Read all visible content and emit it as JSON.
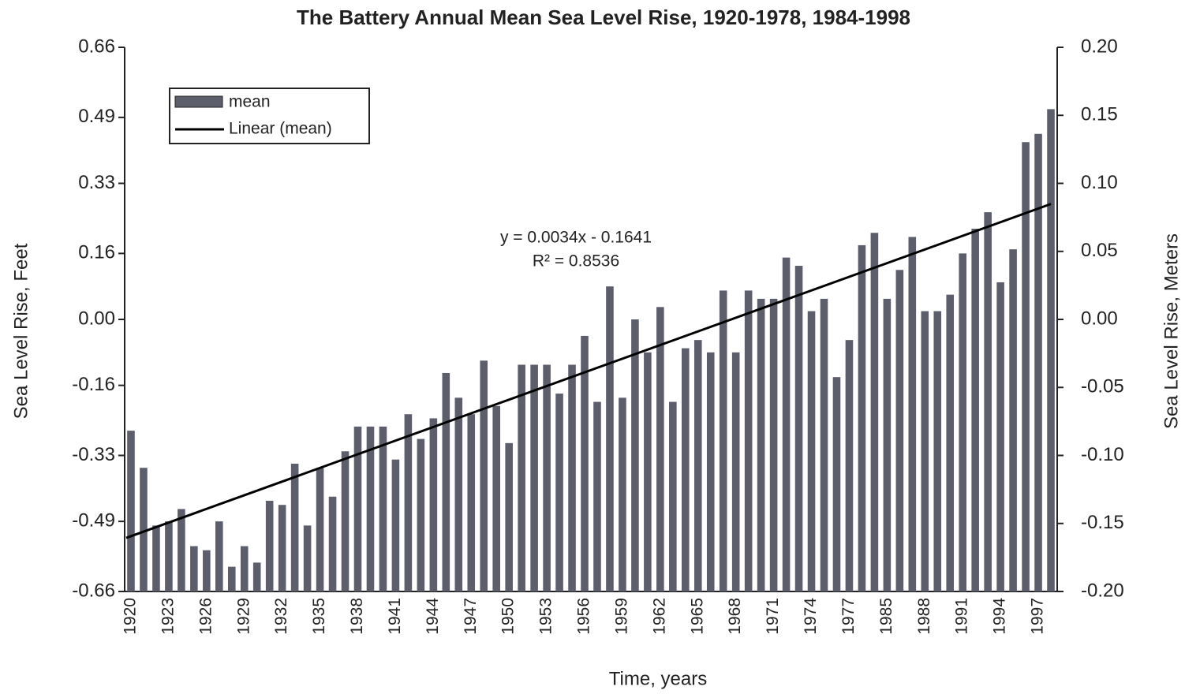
{
  "chart_data": {
    "type": "bar",
    "title": "The Battery Annual Mean Sea Level Rise, 1920-1978, 1984-1998",
    "x_label": "Time, years",
    "y_label": "Sea Level Rise, Feet",
    "y2_label": "Sea Level Rise, Meters",
    "annotations": [
      "y = 0.0034x - 0.1641",
      "R² = 0.8536"
    ],
    "categories": [
      "1920",
      null,
      null,
      "1923",
      null,
      null,
      "1926",
      null,
      null,
      "1929",
      null,
      null,
      "1932",
      null,
      null,
      "1935",
      null,
      null,
      "1938",
      null,
      null,
      "1941",
      null,
      null,
      "1944",
      null,
      null,
      "1947",
      null,
      null,
      "1950",
      null,
      null,
      "1953",
      null,
      null,
      "1956",
      null,
      null,
      "1959",
      null,
      null,
      "1962",
      null,
      null,
      "1965",
      null,
      null,
      "1968",
      null,
      null,
      "1971",
      null,
      null,
      "1974",
      null,
      null,
      "1977",
      null,
      null,
      "1985",
      null,
      null,
      "1988",
      null,
      null,
      "1991",
      null,
      null,
      "1994",
      null,
      null,
      "1997",
      null
    ],
    "series": [
      {
        "name": "mean",
        "color": "#5c5e6b",
        "values": [
          -0.27,
          -0.36,
          -0.5,
          -0.49,
          -0.46,
          -0.55,
          -0.56,
          -0.49,
          -0.6,
          -0.55,
          -0.59,
          -0.44,
          -0.45,
          -0.35,
          -0.5,
          -0.36,
          -0.43,
          -0.32,
          -0.26,
          -0.26,
          -0.26,
          -0.34,
          -0.23,
          -0.29,
          -0.24,
          -0.13,
          -0.19,
          -0.23,
          -0.1,
          -0.21,
          -0.3,
          -0.11,
          -0.11,
          -0.11,
          -0.18,
          -0.11,
          -0.04,
          -0.2,
          0.08,
          -0.19,
          0.0,
          -0.08,
          0.03,
          -0.2,
          -0.07,
          -0.05,
          -0.08,
          0.07,
          -0.08,
          0.07,
          0.05,
          0.05,
          0.15,
          0.13,
          0.02,
          0.05,
          -0.14,
          -0.05,
          0.18,
          0.21,
          0.05,
          0.12,
          0.2,
          0.02,
          0.02,
          0.06,
          0.16,
          0.22,
          0.26,
          0.09,
          0.17,
          0.43,
          0.45,
          0.51
        ]
      }
    ],
    "trendline": {
      "name": "Linear (mean)",
      "color": "#000000",
      "values": [
        -0.53,
        0.28
      ]
    },
    "ylim": [
      -0.66,
      0.66
    ],
    "yticks": [
      -0.66,
      -0.49,
      -0.33,
      -0.16,
      {
        "value": 0,
        "label": "0.00"
      },
      0.16,
      0.33,
      0.49,
      0.66
    ],
    "y2lim": [
      -0.2,
      0.2
    ],
    "y2ticks": [
      {
        "value": -0.2,
        "label": "-0.20"
      },
      -0.15,
      {
        "value": -0.1,
        "label": "-0.10"
      },
      -0.05,
      {
        "value": 0,
        "label": "0.00"
      },
      0.05,
      {
        "value": 0.1,
        "label": "0.10"
      },
      0.15,
      {
        "value": 0.2,
        "label": "0.20"
      }
    ],
    "legend": "upper left",
    "grid": false
  }
}
